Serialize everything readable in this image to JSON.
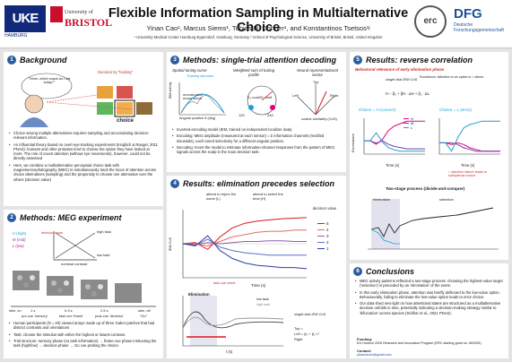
{
  "header": {
    "title": "Flexible Information Sampling in Multialternative Choice",
    "authors": "Yinan Cao¹, Marcus Siems¹, Tobias H. Donner¹, and Konstantinos Tsetsos¹ʲ",
    "affiliations": "¹ University Medical Center Hamburg-Eppendorf, Hamburg, Germany  ² School of Psychological Science, University of Bristol, Bristol, United Kingdom",
    "logo_uke": "UKE",
    "logo_uke_sub": "HAMBURG",
    "logo_bristol_top": "University of",
    "logo_bristol_name": "BRISTOL",
    "logo_erc": "erc",
    "logo_dfg": "DFG",
    "logo_dfg_sub": "Deutsche Forschungsgemeinschaft"
  },
  "s1": {
    "num": "1",
    "title": "Background",
    "bubble": "\"Hmm, which snack do I eat today?\"",
    "decision_label": "Decision by \"looking\"",
    "choice_label": "choice",
    "bullets": [
      "Choice among multiple alternatives requires sampling and accumulating decision-relevant information.",
      "An influential theory based on overt eye-tracking experiments (Krajbich & Rangel, 2011 PNAS): humans and other primates tend to choose the option they have looked at more. The role of covert attention (without eye movements), however, could not be directly assessed",
      "Here, we combine a multialternative perceptual choice task with magnetoencephalography (MEG) to simultaneously track the locus of attention across choice alternatives (sampling) and the propensity to choose one alternative over the others (decision value)"
    ]
  },
  "s2": {
    "num": "2",
    "title": "Methods: MEG experiment",
    "legend_h": "H (high)",
    "legend_m": "M (mid)",
    "legend_l": "L (low)",
    "decision_value": "decision value",
    "high_task": "high task",
    "low_task": "low task",
    "nominal_contrast": "nominal contrast",
    "stim_on": "stim. on",
    "stim_off": "stim. off",
    "t1": "1 s",
    "t2": "0.3 s",
    "t3": "2.5 s",
    "pre_cue": "pre-cue 'sensory'",
    "task_cue": "task cue 'frame'",
    "post_cue": "post-cue 'decision'",
    "go": "\"Go\"",
    "bullets": [
      "Human participants (N = 20) viewed arrays made up of three Gabor patches that had distinct contrasts and orientations",
      "Task: choose the stimulus with either the highest or lowest contrast.",
      "Trial structure: sensory phase (no task information) → frame-cue phase instructing the task (high/low) → decision phase → Go cue probing the choice."
    ]
  },
  "s3": {
    "num": "3",
    "title": "Methods: single-trial attention decoding",
    "spatial_tuning": "Spatial tuning curve",
    "training_stimulus": "Training stimulus",
    "recon": "reconstruction across stimuli",
    "weighted_sum": "Weighted sum of tuning profile",
    "neural_vector": "Neural representational vector",
    "cos_formula": "Σ₀ cosθ/Σ₀ sinθ",
    "cos_sim": "cosine similarity (CoS)",
    "top": "Top",
    "left": "Left",
    "right": "Right",
    "x_label": "Angular position θ (deg)",
    "y_label": "IEM activity",
    "ang_120": "120",
    "ang_240": "240",
    "bullets": [
      "Inverted-encoding model (IEM, trained on independent localizer data)",
      "Encoding: MEG amplitude (measured at each sensor) = Σ information channels (rectified sinusoids), each tuned selectively for a different angular position.",
      "Decoding: Invert the model to estimate information-channel responses from the pattern of MEG signals across the scalp in the main decision task."
    ]
  },
  "s4": {
    "num": "4",
    "title": "Results: elimination precedes selection",
    "attend_reject": "attend to reject the worst (L)",
    "attend_select": "attend to select the best (H)",
    "decision_value": "decision value",
    "dv_levels": [
      "5",
      "4",
      "3",
      "2",
      "1"
    ],
    "task_cue_onset": "task cue onset",
    "x_label": "Time (s)",
    "y_label": "IEM CoS",
    "elimination": "Elimination",
    "low_task": "low task",
    "high_task": "high task",
    "single_trial": "single-trial IEM CoS",
    "formula1": "Top =",
    "formula2": "Left = β₀ + β₁ Lᶜ",
    "formula3": "Right",
    "t_label": "t (s)"
  },
  "s5": {
    "num": "5",
    "title": "Results: reverse correlation",
    "subtitle": "Behavioral relevance of early elimination phase",
    "formula": "H − β₀ + βH · ΔH + β₁ · ΔL",
    "single_trial": "single-trial IEM CoS",
    "exceedance": "Excedence: Attention to an option is > others",
    "choice_h": "Choice = H (correct)",
    "choice_l": "Choice = L (error)",
    "y_label": "Exceedance",
    "x_label": "Time (s)",
    "rejection_failure": "↓ rejection failure leads to suboptimal choice",
    "two_stage": "Two-stage process (divide-and-conquer)",
    "elimination": "elimination",
    "selection": "selection",
    "legend": [
      "H",
      "M",
      "L"
    ]
  },
  "s6": {
    "num": "6",
    "title": "Conclusions",
    "bullets": [
      "MEG activity patterns reflected a two-stage process: choosing the highest-value target ('selection') is preceded by an 'elimination' of the worst.",
      "In this early elimination phase, attention was briefly deflected to the low-value option. Behaviourally, failing to eliminate the low-value option leads to error choice.",
      "Our data shed new light on how attentional states are structured as a multialternative decision unfolds in time, potentially indicating a decision-making strategy similar to 'bifurcation' across species (Sridhar et al., 2021 PNAS)."
    ],
    "funding_title": "Funding:",
    "funding": "EU Horizon 2020 Research and Innovation Program (ERC starting grant no. 802905)",
    "contact_title": "Contact:",
    "contact": "yicaoneuro@gmail.com"
  },
  "chart_data": [
    {
      "type": "line",
      "title": "Results: elimination precedes selection",
      "xlabel": "Time (s)",
      "ylabel": "IEM CoS",
      "x": [
        0,
        0.25,
        0.5,
        0.75,
        1.0,
        1.25,
        1.5,
        1.75,
        2.0,
        2.25,
        2.5
      ],
      "xlim": [
        0,
        2.5
      ],
      "ylim": [
        -0.06,
        0.06
      ],
      "series": [
        {
          "name": "5",
          "color": "#d7191c",
          "values": [
            0.0,
            0.002,
            -0.01,
            0.012,
            0.028,
            0.036,
            0.04,
            0.042,
            0.044,
            0.045,
            0.046
          ]
        },
        {
          "name": "4",
          "color": "#e66a6a",
          "values": [
            0.0,
            0.0,
            -0.004,
            0.004,
            0.012,
            0.016,
            0.02,
            0.022,
            0.022,
            0.024,
            0.024
          ]
        },
        {
          "name": "3",
          "color": "#8c5fa8",
          "values": [
            0.0,
            -0.002,
            0.002,
            0.0,
            0.002,
            0.004,
            0.004,
            0.005,
            0.005,
            0.004,
            0.004
          ]
        },
        {
          "name": "2",
          "color": "#5b6fc4",
          "values": [
            0.0,
            -0.003,
            0.008,
            -0.006,
            -0.012,
            -0.016,
            -0.018,
            -0.02,
            -0.02,
            -0.02,
            -0.02
          ]
        },
        {
          "name": "1",
          "color": "#2c3e9e",
          "values": [
            0.0,
            -0.004,
            0.014,
            -0.012,
            -0.026,
            -0.034,
            -0.038,
            -0.04,
            -0.042,
            -0.042,
            -0.044
          ]
        }
      ]
    },
    {
      "type": "line",
      "title": "Choice = H (correct)",
      "xlabel": "Time (s)",
      "ylabel": "Exceedance",
      "x": [
        0,
        0.25,
        0.5,
        0.75,
        1.0,
        1.25,
        1.5,
        1.75,
        2.0,
        2.25,
        2.5
      ],
      "xlim": [
        0,
        2.5
      ],
      "series": [
        {
          "name": "H",
          "color": "#e4007c",
          "values": [
            0.33,
            0.33,
            0.3,
            0.34,
            0.42,
            0.46,
            0.48,
            0.5,
            0.5,
            0.5,
            0.5
          ]
        },
        {
          "name": "M",
          "color": "#7d3ca8",
          "values": [
            0.33,
            0.33,
            0.31,
            0.33,
            0.3,
            0.28,
            0.27,
            0.26,
            0.26,
            0.26,
            0.26
          ]
        },
        {
          "name": "L",
          "color": "#1f9fd5",
          "values": [
            0.33,
            0.33,
            0.4,
            0.32,
            0.27,
            0.25,
            0.24,
            0.24,
            0.24,
            0.24,
            0.24
          ]
        }
      ]
    },
    {
      "type": "line",
      "title": "Choice = L (error)",
      "xlabel": "Time (s)",
      "ylabel": "Exceedance",
      "x": [
        0,
        0.25,
        0.5,
        0.75,
        1.0,
        1.25,
        1.5,
        1.75,
        2.0,
        2.25,
        2.5
      ],
      "xlim": [
        0,
        2.5
      ],
      "series": [
        {
          "name": "H",
          "color": "#e4007c",
          "values": [
            0.33,
            0.33,
            0.32,
            0.33,
            0.32,
            0.3,
            0.29,
            0.28,
            0.28,
            0.28,
            0.28
          ]
        },
        {
          "name": "M",
          "color": "#7d3ca8",
          "values": [
            0.33,
            0.33,
            0.33,
            0.32,
            0.3,
            0.29,
            0.28,
            0.28,
            0.28,
            0.28,
            0.28
          ]
        },
        {
          "name": "L",
          "color": "#1f9fd5",
          "values": [
            0.33,
            0.33,
            0.28,
            0.36,
            0.42,
            0.44,
            0.45,
            0.46,
            0.46,
            0.46,
            0.46
          ]
        }
      ]
    }
  ]
}
